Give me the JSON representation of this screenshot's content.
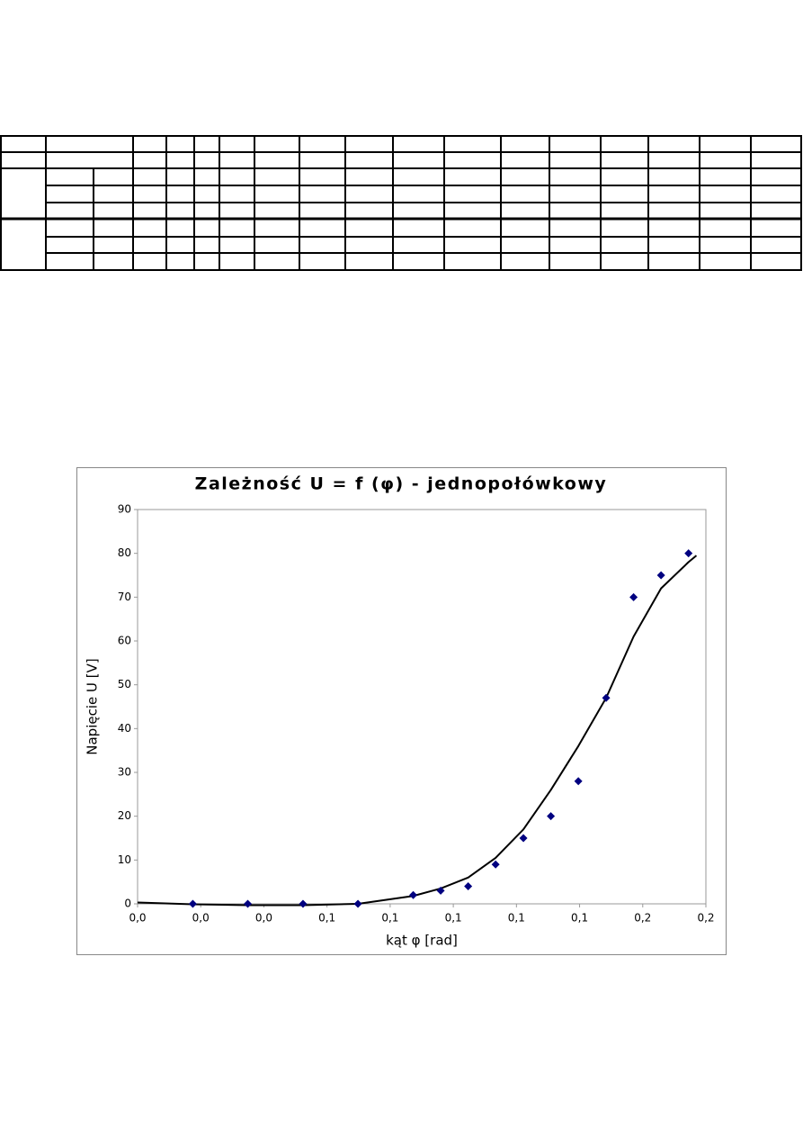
{
  "chart_data": {
    "type": "scatter",
    "title": "Zależność U = f (φ) - jednopołówkowy",
    "x_label": "kąt φ [rad]",
    "y_label": "Napięcie U [V]",
    "x": [
      0.0175,
      0.0349,
      0.0524,
      0.0698,
      0.0873,
      0.096,
      0.1047,
      0.1134,
      0.1222,
      0.1309,
      0.1396,
      0.1484,
      0.1571,
      0.1658,
      0.1745
    ],
    "values": [
      0,
      0,
      0,
      0,
      2,
      3,
      4,
      9,
      15,
      20,
      28,
      47,
      70,
      75,
      80
    ],
    "color": "#000080",
    "trendline": {
      "color": "#000000",
      "x": [
        0,
        0.0175,
        0.035,
        0.0524,
        0.0698,
        0.0873,
        0.096,
        0.1047,
        0.1134,
        0.1222,
        0.1309,
        0.1396,
        0.1484,
        0.1571,
        0.1658,
        0.1745,
        0.177
      ],
      "values": [
        0.3,
        -0.1,
        -0.3,
        -0.3,
        0,
        1.8,
        3.5,
        6,
        10.5,
        17,
        26,
        36,
        47,
        61,
        72,
        78,
        79.5
      ]
    },
    "xlim": [
      0,
      0.18
    ],
    "xticks": [
      {
        "value": 0,
        "label": "0,0"
      },
      {
        "value": 0.02,
        "label": "0,0"
      },
      {
        "value": 0.04,
        "label": "0,0"
      },
      {
        "value": 0.06,
        "label": "0,1"
      },
      {
        "value": 0.08,
        "label": "0,1"
      },
      {
        "value": 0.1,
        "label": "0,1"
      },
      {
        "value": 0.12,
        "label": "0,1"
      },
      {
        "value": 0.14,
        "label": "0,1"
      },
      {
        "value": 0.16,
        "label": "0,2"
      },
      {
        "value": 0.18,
        "label": "0,2"
      }
    ],
    "ylim": [
      0,
      90
    ],
    "yticks": [
      0,
      10,
      20,
      30,
      40,
      50,
      60,
      70,
      80,
      90
    ],
    "grid": false
  }
}
